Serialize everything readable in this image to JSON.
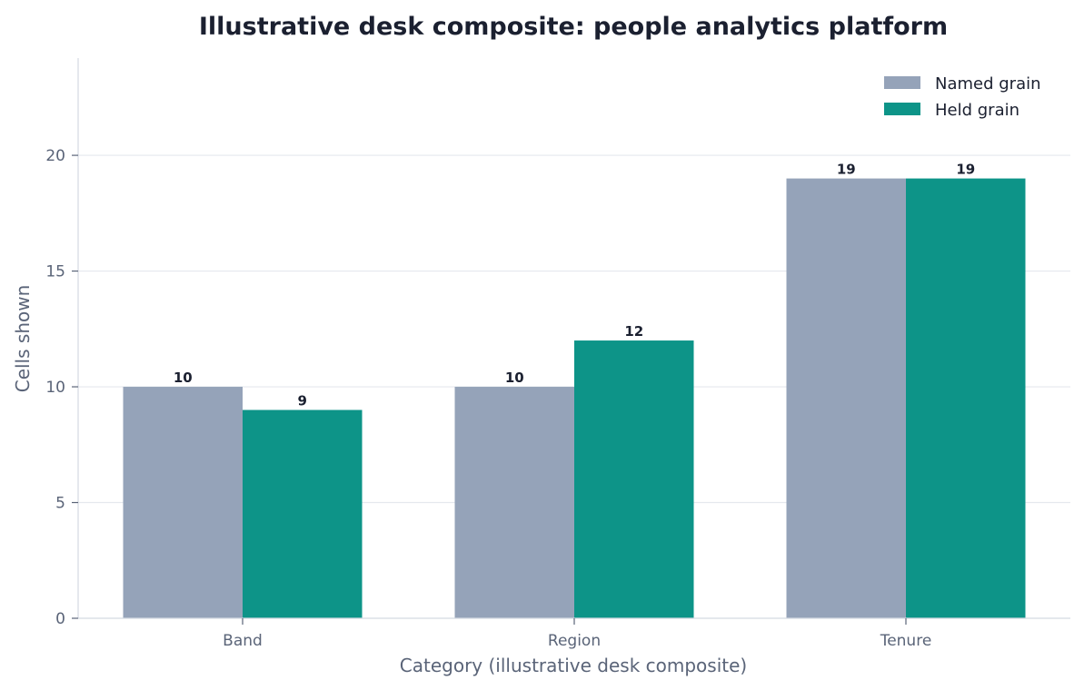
{
  "chart_data": {
    "type": "bar",
    "title": "Illustrative desk composite: people analytics platform",
    "xlabel": "Category (illustrative desk composite)",
    "ylabel": "Cells shown",
    "categories": [
      "Band",
      "Region",
      "Tenure"
    ],
    "series": [
      {
        "name": "Named grain",
        "values": [
          10,
          10,
          19
        ],
        "color": "#95a3b9"
      },
      {
        "name": "Held grain",
        "values": [
          9,
          12,
          19
        ],
        "color": "#0d9488"
      }
    ],
    "ylim": [
      0,
      24.2
    ],
    "yticks": [
      0,
      5,
      10,
      15,
      20
    ],
    "grid": "horizontal",
    "legend": "top-right",
    "gridColor": "#e5e8ee",
    "axisColor": "#d4d9e2"
  }
}
